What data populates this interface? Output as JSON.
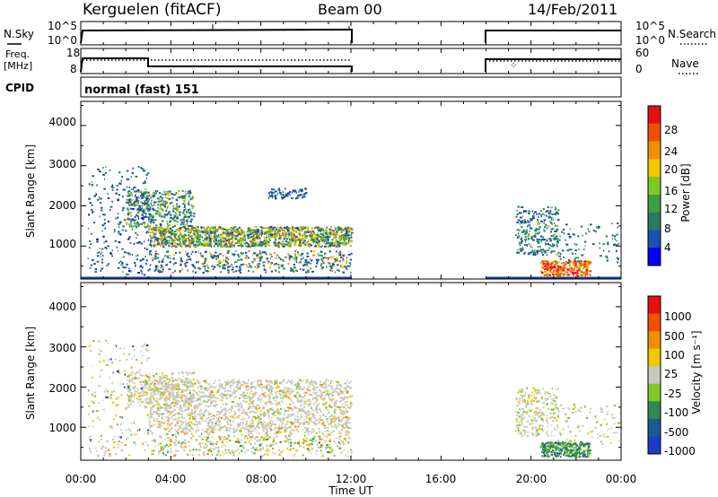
{
  "header": {
    "station": "Kerguelen (fitACF)",
    "beam": "Beam 00",
    "date": "14/Feb/2011"
  },
  "noise_panel": {
    "left_label": "N.Sky",
    "left_ticks": [
      "10^5",
      "10^0"
    ],
    "right_label": "N.Search",
    "right_ticks": [
      "10^5",
      "10^0"
    ]
  },
  "freq_panel": {
    "left_label_1": "Freq.",
    "left_label_2": "[MHz]",
    "left_ticks": [
      "18",
      "8"
    ],
    "right_label": "Nave",
    "right_ticks": [
      "60",
      "0"
    ]
  },
  "cpid": {
    "label": "CPID",
    "value": "normal (fast) 151"
  },
  "axes": {
    "ylabel": "Slant Range [km]",
    "yticks": [
      "4000",
      "3000",
      "2000",
      "1000"
    ],
    "xlabel": "Time UT",
    "xticks": [
      "00:00",
      "04:00",
      "08:00",
      "12:00",
      "16:00",
      "20:00",
      "00:00"
    ]
  },
  "power_scale": {
    "title": "Power [dB]",
    "ticks": [
      "28",
      "24",
      "20",
      "16",
      "12",
      "8",
      "4"
    ],
    "colors": [
      "#0000ff",
      "#1c4fb0",
      "#2a7a60",
      "#3da040",
      "#7ec825",
      "#f0c800",
      "#f09000",
      "#ee5000",
      "#e61010"
    ]
  },
  "velocity_scale": {
    "title": "Velocity [m s⁻¹]",
    "ticks": [
      "1000",
      "500",
      "100",
      "25",
      "-25",
      "-100",
      "-500",
      "-1000"
    ],
    "colors": [
      "#1c3cc8",
      "#1c5a90",
      "#2e8a50",
      "#7ec825",
      "#c8c8c0",
      "#f0c800",
      "#f09000",
      "#f05000",
      "#e61010"
    ]
  },
  "chart_data": [
    {
      "type": "heatmap",
      "title": "Power [dB]",
      "xlabel": "Time UT",
      "ylabel": "Slant Range [km]",
      "xlim": [
        "00:00",
        "24:00"
      ],
      "ylim": [
        180,
        4600
      ],
      "colorbar_range": [
        0,
        32
      ],
      "data_gap": [
        "12:00",
        "18:00"
      ],
      "features": [
        {
          "time_range": [
            "03:00",
            "12:00"
          ],
          "range_km": [
            1000,
            1500
          ],
          "power_db": 20
        },
        {
          "time_range": [
            "02:00",
            "04:00"
          ],
          "range_km": [
            1800,
            2400
          ],
          "power_db": 14
        },
        {
          "time_range": [
            "20:30",
            "22:30"
          ],
          "range_km": [
            300,
            600
          ],
          "power_db": 28
        },
        {
          "time_range": [
            "19:30",
            "21:00"
          ],
          "range_km": [
            900,
            2000
          ],
          "power_db": 10
        }
      ]
    },
    {
      "type": "heatmap",
      "title": "Velocity [m s⁻¹]",
      "xlabel": "Time UT",
      "ylabel": "Slant Range [km]",
      "xlim": [
        "00:00",
        "24:00"
      ],
      "ylim": [
        180,
        4600
      ],
      "colorbar_range": [
        -1000,
        1000
      ],
      "data_gap": [
        "12:00",
        "18:00"
      ],
      "features": [
        {
          "time_range": [
            "03:00",
            "12:00"
          ],
          "range_km": [
            900,
            2200
          ],
          "velocity_ms": 0
        },
        {
          "time_range": [
            "20:30",
            "22:30"
          ],
          "range_km": [
            300,
            600
          ],
          "velocity_ms": 100
        },
        {
          "time_range": [
            "19:30",
            "21:00"
          ],
          "range_km": [
            900,
            2000
          ],
          "velocity_ms": 0
        }
      ]
    },
    {
      "type": "line",
      "title": "N.Sky",
      "x": [
        "00:00",
        "00:30",
        "12:00",
        "12:00",
        "18:00",
        "18:00",
        "24:00"
      ],
      "y_log10": [
        0,
        4.5,
        4.5,
        0,
        0,
        4.5,
        4.5
      ]
    },
    {
      "type": "line",
      "title": "Freq. [MHz]",
      "x": [
        "00:00",
        "00:30",
        "03:00",
        "03:00",
        "12:00",
        "12:00",
        "18:00",
        "18:00",
        "24:00"
      ],
      "y": [
        8,
        13.5,
        13.5,
        11,
        11,
        8,
        8,
        13.5,
        13.5
      ]
    }
  ]
}
